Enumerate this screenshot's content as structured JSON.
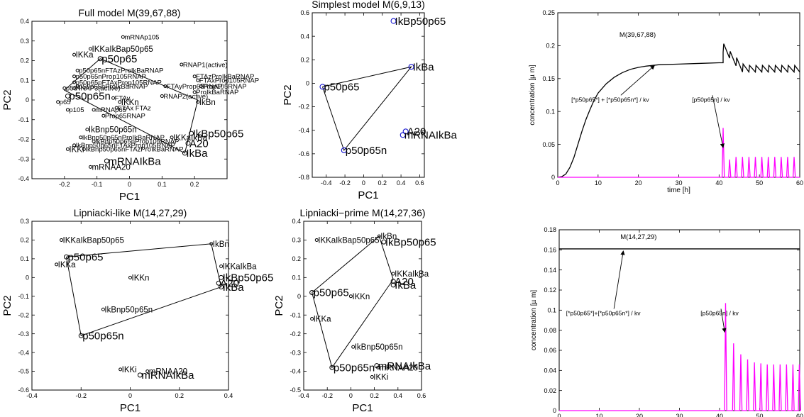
{
  "figure": {
    "background": "#ffffff",
    "accent_magenta": "#ff00ff",
    "marker_blue": "#0000cc"
  },
  "chart_data": [
    {
      "id": "full",
      "type": "scatter",
      "title": "Full model M(39,67,88)",
      "xlabel": "PC1",
      "ylabel": "PC2",
      "xlim": [
        -0.3,
        0.3
      ],
      "ylim": [
        -0.4,
        0.4
      ],
      "xticks": [
        -0.2,
        -0.1,
        0,
        0.1,
        0.2
      ],
      "yticks": [
        -0.4,
        -0.3,
        -0.2,
        -0.1,
        0,
        0.1,
        0.2,
        0.3,
        0.4
      ],
      "xtick_labels": [
        "-0.2",
        "-0.1",
        "0",
        "0.1",
        "0.2"
      ],
      "ytick_labels": [
        "-0.4",
        "-0.3",
        "-0.2",
        "-0.1",
        "0",
        "0.1",
        "0.2",
        "0.3",
        "0.4"
      ],
      "marker_color": "#000000",
      "hull": [
        [
          -0.09,
          0.21
        ],
        [
          0.21,
          0.0
        ],
        [
          0.17,
          -0.27
        ],
        [
          -0.2,
          0.05
        ],
        [
          -0.09,
          0.21
        ]
      ],
      "points": [
        {
          "label": "mRNAp105",
          "x": -0.02,
          "y": 0.32,
          "size": "small"
        },
        {
          "label": "IKKa",
          "x": -0.17,
          "y": 0.23,
          "size": "normal"
        },
        {
          "label": "IKKaIkBap50p65",
          "x": -0.12,
          "y": 0.26,
          "size": "normal"
        },
        {
          "label": "p50p65",
          "x": -0.09,
          "y": 0.21,
          "size": "large"
        },
        {
          "label": "RNAP1(active)",
          "x": 0.16,
          "y": 0.18,
          "size": "small"
        },
        {
          "label": "p50p65nFTAzProIkBaRNAP",
          "x": -0.16,
          "y": 0.15,
          "size": "small"
        },
        {
          "label": "p50p65nProp105RNAP",
          "x": -0.17,
          "y": 0.12,
          "size": "small"
        },
        {
          "label": "p50p65nFTAxProp105RNAP",
          "x": -0.17,
          "y": 0.09,
          "size": "small"
        },
        {
          "label": "p50p65nProIkBaRNAP",
          "x": -0.16,
          "y": 0.07,
          "size": "small"
        },
        {
          "label": "FTAzProIkBaRNAP",
          "x": 0.2,
          "y": 0.12,
          "size": "small"
        },
        {
          "label": "FTAxProp105RNAP",
          "x": 0.21,
          "y": 0.1,
          "size": "small"
        },
        {
          "label": "Prop105RNAP",
          "x": 0.22,
          "y": 0.07,
          "size": "small"
        },
        {
          "label": "FTAyProp65RNAP",
          "x": 0.11,
          "y": 0.07,
          "size": "small"
        },
        {
          "label": "ProIkBaRNAP",
          "x": 0.2,
          "y": 0.04,
          "size": "small"
        },
        {
          "label": "p50",
          "x": -0.2,
          "y": 0.06,
          "size": "small"
        },
        {
          "label": "RNAP3(active)",
          "x": -0.17,
          "y": 0.06,
          "size": "small"
        },
        {
          "label": "p50p65n",
          "x": -0.19,
          "y": 0.02,
          "size": "large"
        },
        {
          "label": "RNAP2(active)",
          "x": 0.1,
          "y": 0.02,
          "size": "small"
        },
        {
          "label": "FTAy",
          "x": -0.05,
          "y": 0.01,
          "size": "small"
        },
        {
          "label": "IKKn",
          "x": -0.03,
          "y": -0.01,
          "size": "normal"
        },
        {
          "label": "IkBn",
          "x": 0.21,
          "y": -0.01,
          "size": "normal"
        },
        {
          "label": "p65",
          "x": -0.22,
          "y": -0.01,
          "size": "small"
        },
        {
          "label": "FTAx FTAz",
          "x": -0.04,
          "y": -0.04,
          "size": "small"
        },
        {
          "label": "mRNAp65",
          "x": -0.11,
          "y": -0.05,
          "size": "small"
        },
        {
          "label": "p105",
          "x": -0.19,
          "y": -0.05,
          "size": "small"
        },
        {
          "label": "Prop65RNAP",
          "x": -0.08,
          "y": -0.08,
          "size": "small"
        },
        {
          "label": "IkBnp50p65n",
          "x": -0.13,
          "y": -0.15,
          "size": "normal"
        },
        {
          "label": "IkBp50p65",
          "x": 0.19,
          "y": -0.17,
          "size": "large"
        },
        {
          "label": "IKKaIkBa",
          "x": 0.13,
          "y": -0.19,
          "size": "normal"
        },
        {
          "label": "IkBnp50p65nProIkBaRNAP",
          "x": -0.15,
          "y": -0.19,
          "size": "small"
        },
        {
          "label": "IkBnp50p65nProp105RNAP",
          "x": -0.11,
          "y": -0.21,
          "size": "small"
        },
        {
          "label": "A20",
          "x": 0.18,
          "y": -0.22,
          "size": "large"
        },
        {
          "label": "IkBnp50p65nFTAxProp105RNAP",
          "x": -0.17,
          "y": -0.23,
          "size": "small"
        },
        {
          "label": "IkBa",
          "x": 0.17,
          "y": -0.27,
          "size": "large"
        },
        {
          "label": "IKKi",
          "x": -0.19,
          "y": -0.25,
          "size": "normal"
        },
        {
          "label": "IkBnp50p65nFTAzProIkBaRNAP",
          "x": -0.14,
          "y": -0.25,
          "size": "small"
        },
        {
          "label": "mRNAIkBa",
          "x": -0.07,
          "y": -0.31,
          "size": "large"
        },
        {
          "label": "mRNAA20",
          "x": -0.12,
          "y": -0.34,
          "size": "normal"
        }
      ]
    },
    {
      "id": "simplest",
      "type": "scatter",
      "title": "Simplest model M(6,9,13)",
      "xlabel": "PC1",
      "ylabel": "PC2",
      "xlim": [
        -0.55,
        0.65
      ],
      "ylim": [
        -0.8,
        0.6
      ],
      "xticks": [
        -0.4,
        -0.2,
        0,
        0.2,
        0.4,
        0.6
      ],
      "yticks": [
        -0.8,
        -0.6,
        -0.4,
        -0.2,
        0,
        0.2,
        0.4,
        0.6
      ],
      "xtick_labels": [
        "-0.4",
        "-0.2",
        "0",
        "0.2",
        "0.4",
        "0.6"
      ],
      "ytick_labels": [
        "-0.8",
        "-0.6",
        "-0.4",
        "-0.2",
        "0",
        "0.2",
        "0.4",
        "0.6"
      ],
      "marker_color": "#0000cc",
      "hull": [
        [
          -0.44,
          -0.03
        ],
        [
          0.51,
          0.14
        ],
        [
          -0.21,
          -0.57
        ],
        [
          -0.44,
          -0.03
        ]
      ],
      "points": [
        {
          "label": "IkBp50p65",
          "x": 0.32,
          "y": 0.53,
          "size": "large"
        },
        {
          "label": "IkBa",
          "x": 0.51,
          "y": 0.14,
          "size": "large"
        },
        {
          "label": "p50p65",
          "x": -0.44,
          "y": -0.03,
          "size": "large"
        },
        {
          "label": "A20",
          "x": 0.45,
          "y": -0.41,
          "size": "large"
        },
        {
          "label": "mRNAIkBa",
          "x": 0.42,
          "y": -0.44,
          "size": "large"
        },
        {
          "label": "p50p65n",
          "x": -0.21,
          "y": -0.57,
          "size": "large"
        }
      ]
    },
    {
      "id": "lipniacki",
      "type": "scatter",
      "title": "Lipniacki-like M(14,27,29)",
      "xlabel": "PC1",
      "ylabel": "PC2",
      "xlim": [
        -0.4,
        0.4
      ],
      "ylim": [
        -0.6,
        0.3
      ],
      "xticks": [
        -0.4,
        -0.2,
        0,
        0.2,
        0.4
      ],
      "yticks": [
        -0.6,
        -0.5,
        -0.4,
        -0.3,
        -0.2,
        -0.1,
        0,
        0.1,
        0.2,
        0.3
      ],
      "xtick_labels": [
        "-0.4",
        "-0.2",
        "0",
        "0.2",
        "0.4"
      ],
      "ytick_labels": [
        "-0.6",
        "-0.5",
        "-0.4",
        "-0.3",
        "-0.2",
        "-0.1",
        "0",
        "0.1",
        "0.2",
        "0.3"
      ],
      "marker_color": "#000000",
      "hull": [
        [
          -0.26,
          0.11
        ],
        [
          0.33,
          0.18
        ],
        [
          0.37,
          -0.05
        ],
        [
          -0.2,
          -0.31
        ],
        [
          -0.26,
          0.11
        ]
      ],
      "points": [
        {
          "label": "IKKaIkBap50p65",
          "x": -0.28,
          "y": 0.2,
          "size": "normal"
        },
        {
          "label": "IkBn",
          "x": 0.33,
          "y": 0.18,
          "size": "normal"
        },
        {
          "label": "p50p65",
          "x": -0.26,
          "y": 0.11,
          "size": "large"
        },
        {
          "label": "IKKa",
          "x": -0.3,
          "y": 0.07,
          "size": "normal"
        },
        {
          "label": "IKKaIkBa",
          "x": 0.37,
          "y": 0.06,
          "size": "normal"
        },
        {
          "label": "IKKn",
          "x": 0.0,
          "y": 0.0,
          "size": "normal"
        },
        {
          "label": "IkBp50p65",
          "x": 0.37,
          "y": 0.0,
          "size": "large"
        },
        {
          "label": "A20",
          "x": 0.36,
          "y": -0.03,
          "size": "large"
        },
        {
          "label": "IkBa",
          "x": 0.37,
          "y": -0.05,
          "size": "large"
        },
        {
          "label": "IkBnp50p65n",
          "x": -0.11,
          "y": -0.17,
          "size": "normal"
        },
        {
          "label": "p50p65n",
          "x": -0.2,
          "y": -0.31,
          "size": "large"
        },
        {
          "label": "IKKi",
          "x": -0.04,
          "y": -0.49,
          "size": "normal"
        },
        {
          "label": "mRNAA20",
          "x": 0.07,
          "y": -0.5,
          "size": "normal"
        },
        {
          "label": "mRNAIkBa",
          "x": 0.04,
          "y": -0.52,
          "size": "large"
        }
      ]
    },
    {
      "id": "lipniacki_prime",
      "type": "scatter",
      "title": "Lipniacki−prime M(14,27,36)",
      "xlabel": "PC1",
      "ylabel": "PC2",
      "xlim": [
        -0.4,
        0.6
      ],
      "ylim": [
        -0.5,
        0.4
      ],
      "xticks": [
        -0.4,
        -0.2,
        0,
        0.2,
        0.4,
        0.6
      ],
      "yticks": [
        -0.5,
        -0.4,
        -0.3,
        -0.2,
        -0.1,
        0,
        0.1,
        0.2,
        0.3,
        0.4
      ],
      "xtick_labels": [
        "-0.4",
        "-0.2",
        "0",
        "0.2",
        "0.4",
        "0.6"
      ],
      "ytick_labels": [
        "-0.5",
        "-0.4",
        "-0.3",
        "-0.2",
        "-0.1",
        "0",
        "0.1",
        "0.2",
        "0.3",
        "0.4"
      ],
      "marker_color": "#000000",
      "hull": [
        [
          -0.33,
          0.02
        ],
        [
          0.24,
          0.32
        ],
        [
          0.36,
          0.09
        ],
        [
          -0.16,
          -0.38
        ],
        [
          -0.33,
          0.02
        ]
      ],
      "points": [
        {
          "label": "IkBn",
          "x": 0.24,
          "y": 0.32,
          "size": "normal"
        },
        {
          "label": "IKKaIkBap50p65",
          "x": -0.29,
          "y": 0.3,
          "size": "normal"
        },
        {
          "label": "IkBp50p65",
          "x": 0.28,
          "y": 0.29,
          "size": "large"
        },
        {
          "label": "IKKaIkBa",
          "x": 0.36,
          "y": 0.12,
          "size": "normal"
        },
        {
          "label": "A20",
          "x": 0.36,
          "y": 0.08,
          "size": "large"
        },
        {
          "label": "IkBa",
          "x": 0.36,
          "y": 0.06,
          "size": "large"
        },
        {
          "label": "p50p65",
          "x": -0.33,
          "y": 0.02,
          "size": "large"
        },
        {
          "label": "IKKn",
          "x": 0.0,
          "y": 0.0,
          "size": "normal"
        },
        {
          "label": "IKKa",
          "x": -0.33,
          "y": -0.12,
          "size": "normal"
        },
        {
          "label": "IkBnp50p65n",
          "x": 0.02,
          "y": -0.27,
          "size": "normal"
        },
        {
          "label": "mRNAIkBa",
          "x": 0.22,
          "y": -0.37,
          "size": "large"
        },
        {
          "label": "mRNAA20",
          "x": 0.23,
          "y": -0.38,
          "size": "normal"
        },
        {
          "label": "p50p65n",
          "x": -0.16,
          "y": -0.38,
          "size": "large"
        },
        {
          "label": "IKKi",
          "x": 0.18,
          "y": -0.43,
          "size": "normal"
        }
      ]
    },
    {
      "id": "timecourse_top",
      "type": "line",
      "title": "",
      "xlabel": "time [h]",
      "ylabel": "concentration  [µ m]",
      "xlim": [
        0,
        60
      ],
      "ylim": [
        0,
        0.25
      ],
      "xticks": [
        0,
        10,
        20,
        30,
        40,
        50,
        60
      ],
      "yticks": [
        0,
        0.05,
        0.1,
        0.15,
        0.2,
        0.25
      ],
      "xtick_labels": [
        "0",
        "10",
        "20",
        "30",
        "40",
        "50",
        "60"
      ],
      "ytick_labels": [
        "0",
        "0.05",
        "0.1",
        "0.15",
        "0.2",
        "0.25"
      ],
      "inner_label": "M(39,67,88)",
      "series": [
        {
          "name": "[*p50p65*] + [*p50p65n*] / kv",
          "color": "#000000",
          "x": [
            0,
            1,
            2,
            3,
            4,
            5,
            6,
            7,
            8,
            9,
            10,
            12,
            14,
            16,
            18,
            20,
            22,
            25,
            30,
            35,
            40,
            41
          ],
          "y": [
            0,
            0.001,
            0.005,
            0.015,
            0.03,
            0.05,
            0.07,
            0.088,
            0.103,
            0.117,
            0.128,
            0.142,
            0.152,
            0.159,
            0.164,
            0.167,
            0.169,
            0.171,
            0.172,
            0.173,
            0.174,
            0.174
          ],
          "pulsed": {
            "start": 41,
            "period": 1.6,
            "peak0": 0.203,
            "decay": 0.0012,
            "trough_drop": 0.022,
            "end": 60
          }
        },
        {
          "name": "[p50p65n] / kv",
          "color": "#ff00ff",
          "baseline": 0,
          "spikes": [
            {
              "t": 41.0,
              "h": 0.075
            },
            {
              "t": 42.6,
              "h": 0.027
            },
            {
              "t": 44.2,
              "h": 0.031
            },
            {
              "t": 45.8,
              "h": 0.031
            },
            {
              "t": 47.4,
              "h": 0.031
            },
            {
              "t": 49.0,
              "h": 0.031
            },
            {
              "t": 50.6,
              "h": 0.031
            },
            {
              "t": 52.2,
              "h": 0.031
            },
            {
              "t": 53.8,
              "h": 0.031
            },
            {
              "t": 55.4,
              "h": 0.031
            },
            {
              "t": 57.0,
              "h": 0.031
            },
            {
              "t": 58.6,
              "h": 0.031
            }
          ]
        }
      ],
      "annotations": [
        {
          "text": "[*p50p65*] + [*p50p65n*] / kv",
          "x": 13,
          "y": 0.115,
          "arrow_to": [
            24,
            0.17
          ]
        },
        {
          "text": "[p50p65n] / kv",
          "x": 38,
          "y": 0.115,
          "arrow_to": [
            41,
            0.045
          ]
        }
      ]
    },
    {
      "id": "timecourse_bottom",
      "type": "line",
      "title": "",
      "xlabel": "time [h]",
      "ylabel": "concentration  [µ m]",
      "xlim": [
        0,
        60
      ],
      "ylim": [
        0,
        0.18
      ],
      "xticks": [
        0,
        10,
        20,
        30,
        40,
        50,
        60
      ],
      "yticks": [
        0,
        0.02,
        0.04,
        0.06,
        0.08,
        0.1,
        0.12,
        0.14,
        0.16,
        0.18
      ],
      "xtick_labels": [
        "0",
        "10",
        "20",
        "30",
        "40",
        "50",
        "60"
      ],
      "ytick_labels": [
        "0",
        "0.02",
        "0.04",
        "0.06",
        "0.08",
        "0.1",
        "0.12",
        "0.14",
        "0.16",
        "0.18"
      ],
      "inner_label": "M(14,27,29)",
      "series": [
        {
          "name": "[*p50p65*]+[*p50p65n*] / kv",
          "color": "#000000",
          "x": [
            0,
            60
          ],
          "y": [
            0.161,
            0.161
          ]
        },
        {
          "name": "[p50p65n] / kv",
          "color": "#ff00ff",
          "baseline": 0,
          "spikes": [
            {
              "t": 41.5,
              "h": 0.107
            },
            {
              "t": 43.5,
              "h": 0.067
            },
            {
              "t": 45.3,
              "h": 0.056
            },
            {
              "t": 47.0,
              "h": 0.051
            },
            {
              "t": 48.7,
              "h": 0.048
            },
            {
              "t": 50.3,
              "h": 0.047
            },
            {
              "t": 51.9,
              "h": 0.046
            },
            {
              "t": 53.5,
              "h": 0.046
            },
            {
              "t": 55.1,
              "h": 0.046
            },
            {
              "t": 56.7,
              "h": 0.046
            },
            {
              "t": 58.3,
              "h": 0.046
            },
            {
              "t": 59.9,
              "h": 0.046
            }
          ]
        }
      ],
      "annotations": [
        {
          "text": "[*p50p65*]+[*p50p65n*] / kv",
          "x": 11,
          "y": 0.095,
          "arrow_to": [
            16,
            0.159
          ]
        },
        {
          "text": "[p50p65n] / kv",
          "x": 40,
          "y": 0.095,
          "arrow_to": [
            41.3,
            0.078
          ]
        }
      ]
    }
  ]
}
